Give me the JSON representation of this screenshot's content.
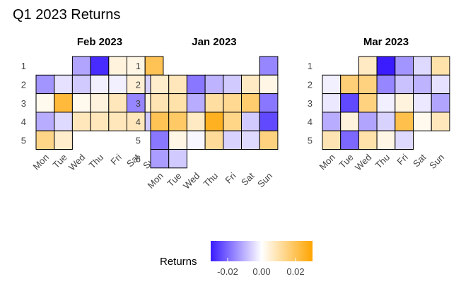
{
  "title": "Q1 2023 Returns",
  "chart_data": {
    "type": "heatmap",
    "title": "Q1 2023 Returns",
    "weekday_labels": [
      "Mon",
      "Tue",
      "Wed",
      "Thu",
      "Fri",
      "Sat",
      "Sun"
    ],
    "color_scale": {
      "low_color": "#3a1cff",
      "mid_color": "#ffffff",
      "high_color": "#ffa500",
      "min": -0.03,
      "max": 0.03,
      "legend_ticks": [
        "-0.02",
        "0.00",
        "0.02"
      ],
      "legend_tick_values": [
        -0.02,
        0.0,
        0.02
      ]
    },
    "legend": {
      "title": "Returns",
      "position": "bottom"
    },
    "facets": [
      {
        "title": "Feb 2023",
        "week_labels": [
          "1",
          "2",
          "3",
          "4",
          "5"
        ],
        "cells": [
          {
            "week": 1,
            "day": 3,
            "value": -0.012
          },
          {
            "week": 1,
            "day": 4,
            "value": -0.028
          },
          {
            "week": 1,
            "day": 5,
            "value": 0.004
          },
          {
            "week": 1,
            "day": 6,
            "value": 0.003
          },
          {
            "week": 1,
            "day": 7,
            "value": 0.02
          },
          {
            "week": 2,
            "day": 1,
            "value": -0.014
          },
          {
            "week": 2,
            "day": 2,
            "value": -0.004
          },
          {
            "week": 2,
            "day": 3,
            "value": -0.007
          },
          {
            "week": 2,
            "day": 4,
            "value": -0.002
          },
          {
            "week": 2,
            "day": 5,
            "value": -0.002
          },
          {
            "week": 2,
            "day": 6,
            "value": 0.005
          },
          {
            "week": 2,
            "day": 7,
            "value": -0.006
          },
          {
            "week": 3,
            "day": 1,
            "value": 0.002
          },
          {
            "week": 3,
            "day": 2,
            "value": 0.023
          },
          {
            "week": 3,
            "day": 3,
            "value": 0.002
          },
          {
            "week": 3,
            "day": 4,
            "value": 0.004
          },
          {
            "week": 3,
            "day": 5,
            "value": 0.008
          },
          {
            "week": 3,
            "day": 6,
            "value": -0.016
          },
          {
            "week": 3,
            "day": 7,
            "value": 0.004
          },
          {
            "week": 4,
            "day": 1,
            "value": -0.011
          },
          {
            "week": 4,
            "day": 2,
            "value": -0.005
          },
          {
            "week": 4,
            "day": 3,
            "value": 0.008
          },
          {
            "week": 4,
            "day": 4,
            "value": 0.008
          },
          {
            "week": 4,
            "day": 5,
            "value": 0.008
          },
          {
            "week": 4,
            "day": 6,
            "value": 0.008
          },
          {
            "week": 4,
            "day": 7,
            "value": -0.007
          },
          {
            "week": 5,
            "day": 1,
            "value": 0.014
          },
          {
            "week": 5,
            "day": 2,
            "value": 0.006
          }
        ]
      },
      {
        "title": "Jan 2023",
        "week_labels": [
          "1",
          "2",
          "3",
          "4",
          "5",
          "6"
        ],
        "cells": [
          {
            "week": 1,
            "day": 7,
            "value": -0.016
          },
          {
            "week": 2,
            "day": 1,
            "value": 0.006
          },
          {
            "week": 2,
            "day": 2,
            "value": 0.008
          },
          {
            "week": 2,
            "day": 3,
            "value": -0.018
          },
          {
            "week": 2,
            "day": 4,
            "value": -0.01
          },
          {
            "week": 2,
            "day": 5,
            "value": -0.007
          },
          {
            "week": 2,
            "day": 6,
            "value": 0.007
          },
          {
            "week": 2,
            "day": 7,
            "value": 0.003
          },
          {
            "week": 3,
            "day": 1,
            "value": 0.009
          },
          {
            "week": 3,
            "day": 2,
            "value": 0.01
          },
          {
            "week": 3,
            "day": 3,
            "value": -0.011
          },
          {
            "week": 3,
            "day": 4,
            "value": 0.011
          },
          {
            "week": 3,
            "day": 5,
            "value": 0.013
          },
          {
            "week": 3,
            "day": 6,
            "value": 0.017
          },
          {
            "week": 3,
            "day": 7,
            "value": -0.018
          },
          {
            "week": 4,
            "day": 1,
            "value": 0.02
          },
          {
            "week": 4,
            "day": 2,
            "value": 0.018
          },
          {
            "week": 4,
            "day": 3,
            "value": 0.007
          },
          {
            "week": 4,
            "day": 4,
            "value": 0.026
          },
          {
            "week": 4,
            "day": 5,
            "value": 0.014
          },
          {
            "week": 4,
            "day": 6,
            "value": -0.007
          },
          {
            "week": 4,
            "day": 7,
            "value": -0.024
          },
          {
            "week": 5,
            "day": 1,
            "value": -0.018
          },
          {
            "week": 5,
            "day": 2,
            "value": 0.003
          },
          {
            "week": 5,
            "day": 3,
            "value": -0.001
          },
          {
            "week": 5,
            "day": 4,
            "value": 0.012
          },
          {
            "week": 5,
            "day": 5,
            "value": -0.006
          },
          {
            "week": 5,
            "day": 6,
            "value": -0.005
          },
          {
            "week": 5,
            "day": 7,
            "value": 0.015
          },
          {
            "week": 6,
            "day": 1,
            "value": -0.013
          },
          {
            "week": 6,
            "day": 2,
            "value": -0.007
          }
        ]
      },
      {
        "title": "Mar 2023",
        "week_labels": [
          "1",
          "2",
          "3",
          "4",
          "5"
        ],
        "cells": [
          {
            "week": 1,
            "day": 3,
            "value": 0.007
          },
          {
            "week": 1,
            "day": 4,
            "value": -0.03
          },
          {
            "week": 1,
            "day": 5,
            "value": -0.014
          },
          {
            "week": 1,
            "day": 6,
            "value": -0.005
          },
          {
            "week": 1,
            "day": 7,
            "value": 0.01
          },
          {
            "week": 2,
            "day": 1,
            "value": -0.002
          },
          {
            "week": 2,
            "day": 2,
            "value": 0.016
          },
          {
            "week": 2,
            "day": 3,
            "value": 0.015
          },
          {
            "week": 2,
            "day": 4,
            "value": -0.016
          },
          {
            "week": 2,
            "day": 5,
            "value": -0.008
          },
          {
            "week": 2,
            "day": 6,
            "value": -0.01
          },
          {
            "week": 2,
            "day": 7,
            "value": -0.004
          },
          {
            "week": 3,
            "day": 1,
            "value": -0.003
          },
          {
            "week": 3,
            "day": 2,
            "value": -0.024
          },
          {
            "week": 3,
            "day": 3,
            "value": 0.015
          },
          {
            "week": 3,
            "day": 4,
            "value": -0.002
          },
          {
            "week": 3,
            "day": 5,
            "value": 0.004
          },
          {
            "week": 3,
            "day": 6,
            "value": -0.003
          },
          {
            "week": 3,
            "day": 7,
            "value": -0.012
          },
          {
            "week": 4,
            "day": 1,
            "value": -0.011
          },
          {
            "week": 4,
            "day": 2,
            "value": 0.004
          },
          {
            "week": 4,
            "day": 3,
            "value": -0.012
          },
          {
            "week": 4,
            "day": 4,
            "value": -0.006
          },
          {
            "week": 4,
            "day": 5,
            "value": 0.021
          },
          {
            "week": 4,
            "day": 6,
            "value": 0.002
          },
          {
            "week": 4,
            "day": 7,
            "value": 0.008
          },
          {
            "week": 5,
            "day": 1,
            "value": 0.009
          },
          {
            "week": 5,
            "day": 2,
            "value": -0.02
          },
          {
            "week": 5,
            "day": 3,
            "value": 0.01
          },
          {
            "week": 5,
            "day": 4,
            "value": 0.003
          },
          {
            "week": 5,
            "day": 5,
            "value": -0.005
          }
        ]
      }
    ]
  }
}
